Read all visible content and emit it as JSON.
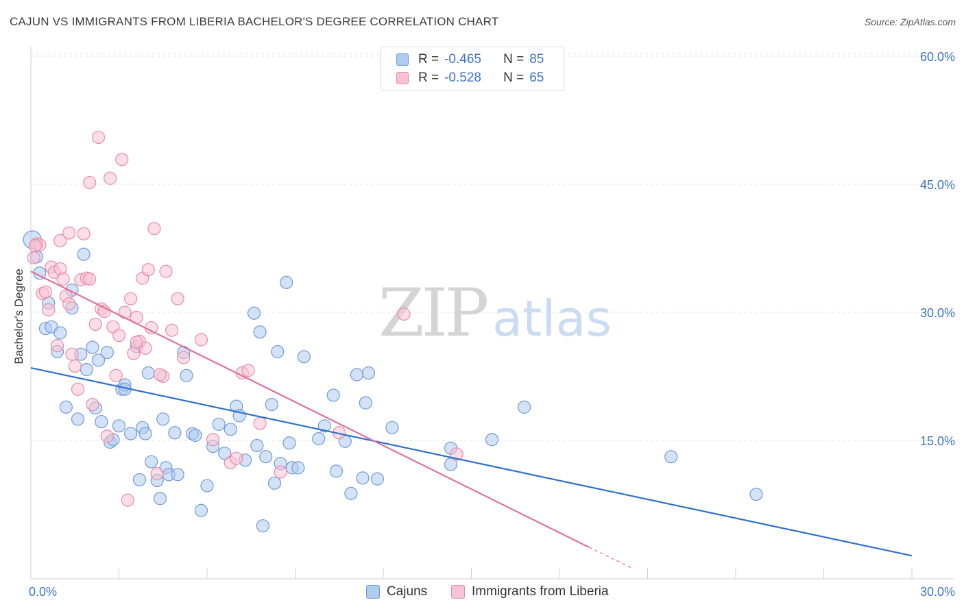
{
  "title": "CAJUN VS IMMIGRANTS FROM LIBERIA BACHELOR'S DEGREE CORRELATION CHART",
  "source": "Source: ZipAtlas.com",
  "watermark": {
    "zip": "ZIP",
    "atlas": "atlas"
  },
  "legend": {
    "rows": [
      {
        "r_label": "R =",
        "r_value": "-0.465",
        "n_label": "N =",
        "n_value": "85",
        "color": "#aecbf0",
        "border": "#6f9bd8"
      },
      {
        "r_label": "R =",
        "r_value": "-0.528",
        "n_label": "N =",
        "n_value": "65",
        "color": "#f7c3d2",
        "border": "#e88aa8"
      }
    ]
  },
  "bottom_legend": [
    {
      "label": "Cajuns",
      "color": "#aecbf0",
      "border": "#6f9bd8"
    },
    {
      "label": "Immigrants from Liberia",
      "color": "#f7c3d2",
      "border": "#e88aa8"
    }
  ],
  "chart_data": {
    "type": "scatter",
    "xlabel": "",
    "ylabel": "Bachelor's Degree",
    "xlim": [
      0,
      30
    ],
    "ylim": [
      0,
      60
    ],
    "x_tick_labels": [
      {
        "value": 0,
        "label": "0.0%"
      },
      {
        "value": 30,
        "label": "30.0%"
      }
    ],
    "y_tick_labels": [
      {
        "value": 15,
        "label": "15.0%"
      },
      {
        "value": 30,
        "label": "30.0%"
      },
      {
        "value": 45,
        "label": "45.0%"
      },
      {
        "value": 60,
        "label": "60.0%"
      }
    ],
    "grid": true,
    "legend_placement": "top-center",
    "series": [
      {
        "name": "Cajuns",
        "color": "#6f9bd8",
        "fill": "#aecbf0",
        "trend_color": "#2d6fcf",
        "trend": {
          "x": [
            0,
            30
          ],
          "y": [
            23.5,
            1.5
          ]
        },
        "points": [
          [
            0.05,
            38.5
          ],
          [
            0.3,
            34.6
          ],
          [
            0.5,
            28.1
          ],
          [
            0.6,
            31.1
          ],
          [
            0.7,
            28.3
          ],
          [
            0.9,
            25.4
          ],
          [
            1.0,
            27.6
          ],
          [
            1.2,
            18.9
          ],
          [
            1.4,
            32.6
          ],
          [
            1.4,
            30.5
          ],
          [
            1.6,
            17.5
          ],
          [
            1.7,
            25.1
          ],
          [
            1.8,
            36.8
          ],
          [
            1.9,
            23.3
          ],
          [
            2.1,
            25.9
          ],
          [
            2.2,
            18.8
          ],
          [
            2.3,
            24.4
          ],
          [
            2.4,
            17.2
          ],
          [
            2.6,
            25.3
          ],
          [
            2.7,
            14.8
          ],
          [
            2.8,
            15.1
          ],
          [
            3.0,
            16.7
          ],
          [
            3.1,
            21.0
          ],
          [
            3.2,
            21.5
          ],
          [
            3.4,
            15.8
          ],
          [
            3.6,
            26.0
          ],
          [
            3.7,
            10.4
          ],
          [
            3.8,
            16.5
          ],
          [
            3.9,
            15.8
          ],
          [
            4.0,
            22.9
          ],
          [
            4.1,
            12.5
          ],
          [
            4.3,
            10.3
          ],
          [
            4.4,
            8.2
          ],
          [
            4.5,
            17.5
          ],
          [
            4.6,
            11.8
          ],
          [
            4.7,
            11.0
          ],
          [
            4.9,
            15.9
          ],
          [
            5.0,
            11.0
          ],
          [
            5.2,
            25.3
          ],
          [
            5.3,
            22.6
          ],
          [
            5.5,
            15.8
          ],
          [
            5.6,
            15.6
          ],
          [
            5.8,
            6.8
          ],
          [
            6.0,
            9.7
          ],
          [
            6.2,
            14.3
          ],
          [
            6.4,
            16.9
          ],
          [
            6.6,
            13.5
          ],
          [
            6.8,
            16.3
          ],
          [
            7.0,
            19.0
          ],
          [
            7.1,
            17.9
          ],
          [
            7.3,
            12.7
          ],
          [
            7.6,
            29.9
          ],
          [
            7.7,
            14.4
          ],
          [
            7.8,
            27.7
          ],
          [
            7.9,
            5.0
          ],
          [
            8.0,
            13.1
          ],
          [
            8.2,
            19.2
          ],
          [
            8.3,
            10.0
          ],
          [
            8.4,
            25.4
          ],
          [
            8.5,
            12.3
          ],
          [
            8.7,
            33.5
          ],
          [
            8.8,
            14.7
          ],
          [
            8.9,
            11.8
          ],
          [
            9.1,
            11.8
          ],
          [
            9.3,
            24.8
          ],
          [
            9.8,
            15.2
          ],
          [
            10.0,
            16.7
          ],
          [
            10.3,
            20.3
          ],
          [
            10.4,
            11.4
          ],
          [
            10.7,
            14.9
          ],
          [
            10.9,
            8.8
          ],
          [
            11.1,
            22.7
          ],
          [
            11.3,
            10.6
          ],
          [
            11.4,
            19.4
          ],
          [
            11.5,
            22.9
          ],
          [
            11.8,
            10.5
          ],
          [
            12.3,
            16.5
          ],
          [
            14.3,
            14.1
          ],
          [
            14.3,
            12.2
          ],
          [
            15.7,
            15.1
          ],
          [
            16.8,
            18.9
          ],
          [
            21.8,
            13.1
          ],
          [
            24.7,
            8.7
          ],
          [
            0.2,
            36.5
          ],
          [
            3.2,
            21.0
          ]
        ]
      },
      {
        "name": "Immigrants from Liberia",
        "color": "#e88aa8",
        "fill": "#f7c3d2",
        "trend_color": "#e0709a",
        "trend": {
          "x": [
            0,
            19.0
          ],
          "y": [
            34.8,
            2.5
          ]
        },
        "trend_dashed": {
          "x": [
            19.0,
            20.5
          ],
          "y": [
            2.5,
            0.0
          ]
        },
        "points": [
          [
            0.1,
            36.4
          ],
          [
            0.2,
            38.0
          ],
          [
            0.3,
            37.9
          ],
          [
            0.4,
            32.2
          ],
          [
            0.5,
            32.4
          ],
          [
            0.6,
            30.3
          ],
          [
            0.7,
            35.3
          ],
          [
            0.8,
            34.7
          ],
          [
            0.9,
            26.1
          ],
          [
            1.0,
            38.4
          ],
          [
            1.0,
            35.1
          ],
          [
            1.1,
            33.9
          ],
          [
            1.2,
            31.9
          ],
          [
            1.3,
            31.0
          ],
          [
            1.4,
            25.1
          ],
          [
            1.5,
            23.7
          ],
          [
            1.6,
            21.0
          ],
          [
            1.7,
            33.8
          ],
          [
            1.8,
            39.2
          ],
          [
            1.9,
            34.0
          ],
          [
            2.0,
            45.2
          ],
          [
            2.1,
            19.2
          ],
          [
            2.2,
            28.6
          ],
          [
            2.3,
            50.5
          ],
          [
            2.4,
            30.4
          ],
          [
            2.5,
            30.1
          ],
          [
            2.6,
            15.5
          ],
          [
            2.7,
            45.7
          ],
          [
            2.8,
            28.3
          ],
          [
            2.9,
            22.6
          ],
          [
            3.0,
            27.3
          ],
          [
            3.1,
            47.9
          ],
          [
            3.2,
            30.0
          ],
          [
            3.3,
            8.0
          ],
          [
            3.4,
            31.6
          ],
          [
            3.5,
            25.2
          ],
          [
            3.6,
            29.4
          ],
          [
            3.7,
            26.6
          ],
          [
            3.8,
            34.0
          ],
          [
            3.9,
            25.8
          ],
          [
            4.0,
            35.0
          ],
          [
            4.1,
            28.2
          ],
          [
            4.2,
            39.8
          ],
          [
            4.3,
            11.1
          ],
          [
            4.5,
            22.5
          ],
          [
            4.6,
            34.8
          ],
          [
            4.8,
            27.9
          ],
          [
            5.0,
            31.6
          ],
          [
            5.2,
            24.7
          ],
          [
            5.8,
            26.8
          ],
          [
            6.2,
            15.1
          ],
          [
            6.8,
            12.4
          ],
          [
            7.0,
            12.9
          ],
          [
            7.2,
            22.9
          ],
          [
            7.4,
            23.2
          ],
          [
            7.8,
            17.0
          ],
          [
            8.5,
            11.3
          ],
          [
            10.5,
            15.9
          ],
          [
            12.7,
            29.8
          ],
          [
            14.5,
            13.4
          ],
          [
            0.15,
            37.8
          ],
          [
            1.3,
            39.3
          ],
          [
            2.0,
            33.9
          ],
          [
            3.6,
            26.5
          ],
          [
            4.4,
            22.7
          ]
        ]
      }
    ]
  }
}
